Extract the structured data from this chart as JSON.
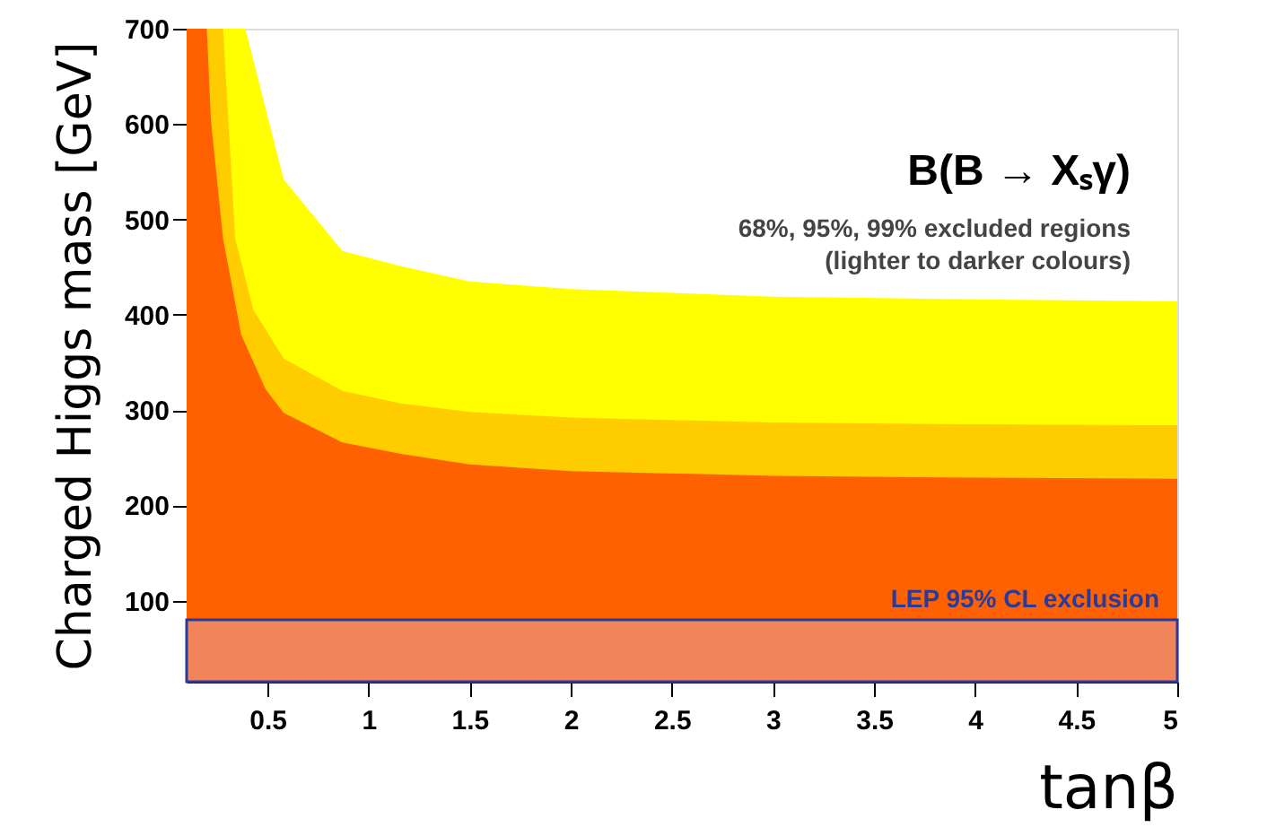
{
  "chart_data": {
    "type": "area",
    "xlabel": "tanβ",
    "ylabel": "Charged Higgs mass [GeV]",
    "annotations": [
      "B(B → Xₛγ)",
      "68%, 95%, 99% excluded regions",
      "(lighter to darker colours)"
    ],
    "series": [
      {
        "color": "#ffff00",
        "x": [
          0.28,
          0.39,
          0.58,
          0.87,
          1.16,
          1.5,
          2,
          3,
          4,
          5
        ],
        "values": [
          700,
          700,
          542,
          467,
          451,
          435,
          427,
          419,
          416,
          414
        ]
      },
      {
        "color": "#ffcc00",
        "x": [
          0.2,
          0.28,
          0.34,
          0.43,
          0.58,
          0.87,
          1.16,
          1.5,
          2,
          3,
          4,
          5
        ],
        "values": [
          700,
          700,
          480,
          405,
          354,
          320,
          307,
          298,
          292,
          287,
          285,
          284
        ]
      },
      {
        "color": "#ff6000",
        "x": [
          0.1,
          0.2,
          0.22,
          0.28,
          0.37,
          0.49,
          0.58,
          0.87,
          1.16,
          1.5,
          2,
          3,
          4,
          5
        ],
        "values": [
          700,
          700,
          604,
          480,
          379,
          322,
          297,
          266,
          254,
          243,
          236,
          231,
          229,
          228
        ]
      }
    ],
    "bands": [
      {
        "axis": "y",
        "from": 15,
        "to": 80,
        "label": "LEP 95% CL exclusion",
        "color": "#f2845a"
      }
    ],
    "ylim": [
      15,
      700
    ],
    "yticks": [
      100,
      200,
      300,
      400,
      500,
      600,
      700
    ],
    "xlim": [
      0.1,
      5
    ],
    "xticks": [
      0.5,
      1,
      1.5,
      2,
      2.5,
      3,
      3.5,
      4,
      4.5,
      5
    ],
    "grid": false
  }
}
